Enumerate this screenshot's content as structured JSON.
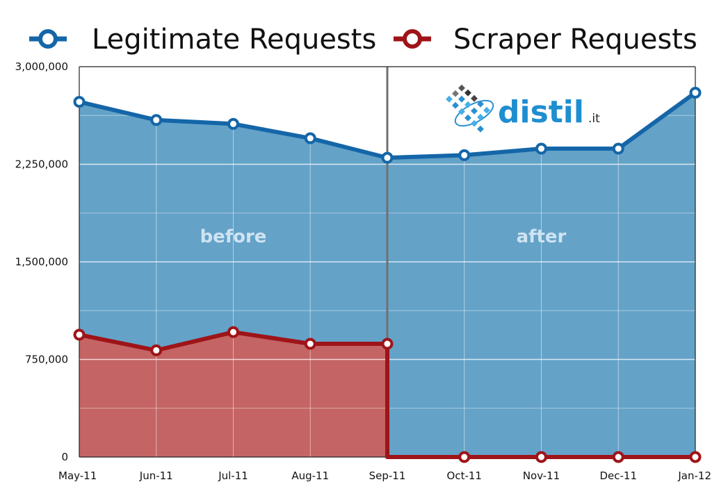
{
  "chart_data": {
    "type": "area",
    "categories": [
      "May-11",
      "Jun-11",
      "Jul-11",
      "Aug-11",
      "Sep-11",
      "Oct-11",
      "Nov-11",
      "Dec-11",
      "Jan-12"
    ],
    "ylim": [
      0,
      3000000
    ],
    "yticks": [
      0,
      750000,
      1500000,
      2250000,
      3000000
    ],
    "ytick_labels": [
      "0",
      "750,000",
      "1,500,000",
      "2,250,000",
      "3,000,000"
    ],
    "grid": true,
    "legend_position": "top",
    "series": [
      {
        "name": "Legitimate Requests",
        "color": "#1466a8",
        "fill": "#64a2c8",
        "values": [
          2730000,
          2590000,
          2560000,
          2450000,
          2300000,
          2320000,
          2370000,
          2370000,
          2800000
        ]
      },
      {
        "name": "Scraper Requests",
        "color": "#9e1418",
        "fill": "#c46464",
        "values": [
          940000,
          820000,
          960000,
          870000,
          870000,
          0,
          0,
          0,
          0
        ],
        "drop_at_index": 4
      }
    ],
    "annotations": [
      {
        "text": "before",
        "region": "left"
      },
      {
        "text": "after",
        "region": "right"
      }
    ],
    "divider_category": "Sep-11"
  },
  "logo": {
    "name": "distil",
    "suffix": ".it"
  }
}
